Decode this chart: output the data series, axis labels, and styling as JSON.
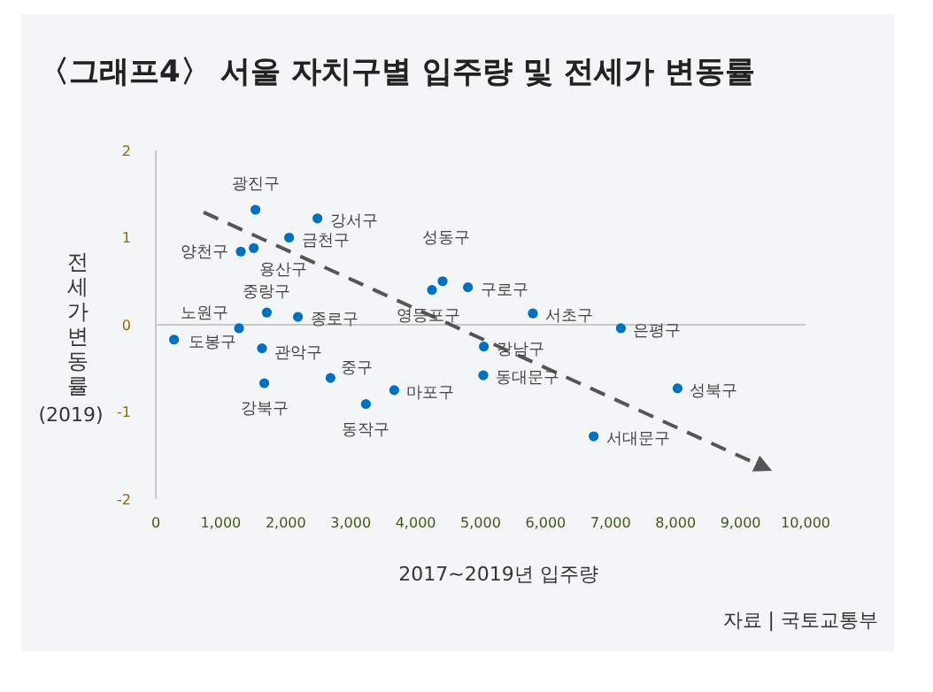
{
  "chart_data": {
    "type": "scatter",
    "title": "〈그래프4〉 서울 자치구별 입주량 및 전세가 변동률",
    "xlabel": "2017~2019년 입주량",
    "ylabel": "전세가변동률 (2019)",
    "xlim": [
      0,
      10000
    ],
    "xticks": [
      0,
      {
        "value": 1000,
        "label": "1,000"
      },
      {
        "value": 2000,
        "label": "2,000"
      },
      {
        "value": 3000,
        "label": "3,000"
      },
      {
        "value": 4000,
        "label": "4,000"
      },
      {
        "value": 5000,
        "label": "5,000"
      },
      {
        "value": 6000,
        "label": "6,000"
      },
      {
        "value": 7000,
        "label": "7,000"
      },
      {
        "value": 8000,
        "label": "8,000"
      },
      {
        "value": 9000,
        "label": "9,000"
      },
      {
        "value": 10000,
        "label": "10,000"
      }
    ],
    "ylim": [
      -2,
      2
    ],
    "yticks": [
      -2,
      -1,
      0,
      1,
      2
    ],
    "grid": false,
    "ref_lines": [
      {
        "axis": "y",
        "value": 0,
        "color": "#c8c8c8"
      }
    ],
    "series": [
      {
        "marker": "circle",
        "color": "#0070c0",
        "x": [
          1534,
          2488,
          2052,
          1308,
          1507,
          1708,
          2188,
          1281,
          281,
          1635,
          1670,
          2689,
          3234,
          3670,
          4251,
          4414,
          4804,
          5804,
          7158,
          5049,
          5041,
          8030,
          6739
        ],
        "values": [
          1.32,
          1.22,
          1.0,
          0.84,
          0.88,
          0.14,
          0.09,
          -0.04,
          -0.17,
          -0.27,
          -0.67,
          -0.61,
          -0.91,
          -0.75,
          0.4,
          0.5,
          0.43,
          0.13,
          -0.04,
          -0.25,
          -0.58,
          -0.73,
          -1.28
        ]
      },
      {
        "type": "line",
        "color": "#555555",
        "line_style": "dashed",
        "x": [
          736,
          9409
        ],
        "values": [
          1.29,
          -1.65
        ]
      }
    ],
    "annotations": [
      {
        "text": "광진구",
        "x": 1534,
        "y": 1.32
      },
      {
        "text": "강서구",
        "x": 2488,
        "y": 1.22
      },
      {
        "text": "금천구",
        "x": 2052,
        "y": 1.0
      },
      {
        "text": "양천구",
        "x": 1308,
        "y": 0.84
      },
      {
        "text": "용산구",
        "x": 1507,
        "y": 0.88
      },
      {
        "text": "중랑구",
        "x": 1708,
        "y": 0.14
      },
      {
        "text": "종로구",
        "x": 2188,
        "y": 0.09
      },
      {
        "text": "노원구",
        "x": 1281,
        "y": -0.04
      },
      {
        "text": "도봉구",
        "x": 281,
        "y": -0.17
      },
      {
        "text": "관악구",
        "x": 1635,
        "y": -0.27
      },
      {
        "text": "강북구",
        "x": 1670,
        "y": -0.67
      },
      {
        "text": "중구",
        "x": 2689,
        "y": -0.61
      },
      {
        "text": "동작구",
        "x": 3234,
        "y": -0.91
      },
      {
        "text": "마포구",
        "x": 3670,
        "y": -0.75
      },
      {
        "text": "영등포구",
        "x": 4251,
        "y": 0.4
      },
      {
        "text": "성동구",
        "x": 4414,
        "y": 0.5
      },
      {
        "text": "구로구",
        "x": 4804,
        "y": 0.43
      },
      {
        "text": "서초구",
        "x": 5804,
        "y": 0.13
      },
      {
        "text": "은평구",
        "x": 7158,
        "y": -0.04
      },
      {
        "text": "강남구",
        "x": 5049,
        "y": -0.25
      },
      {
        "text": "동대문구",
        "x": 5041,
        "y": -0.58
      },
      {
        "text": "성북구",
        "x": 8030,
        "y": -0.73
      },
      {
        "text": "서대문구",
        "x": 6739,
        "y": -1.28
      },
      "자료 | 국토교통부"
    ]
  }
}
